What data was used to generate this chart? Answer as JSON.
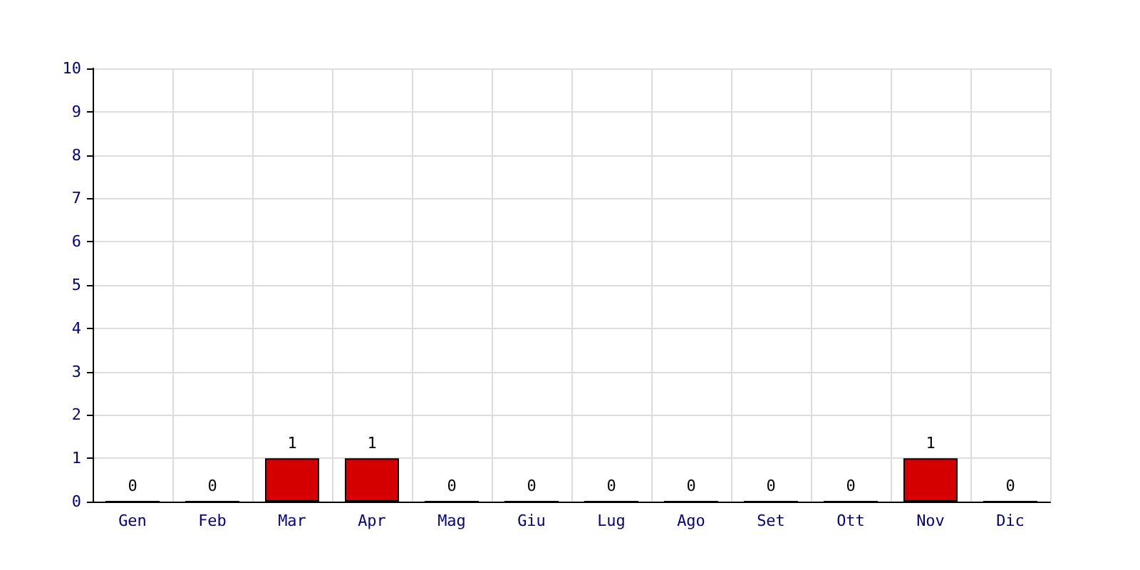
{
  "chart_data": {
    "type": "bar",
    "categories": [
      "Gen",
      "Feb",
      "Mar",
      "Apr",
      "Mag",
      "Giu",
      "Lug",
      "Ago",
      "Set",
      "Ott",
      "Nov",
      "Dic"
    ],
    "values": [
      0,
      0,
      1,
      1,
      0,
      0,
      0,
      0,
      0,
      0,
      1,
      0
    ],
    "color": "#d40000",
    "ylim": [
      0,
      10
    ],
    "yticks": [
      0,
      1,
      2,
      3,
      4,
      5,
      6,
      7,
      8,
      9,
      10
    ],
    "grid": true,
    "data_labels": true
  }
}
